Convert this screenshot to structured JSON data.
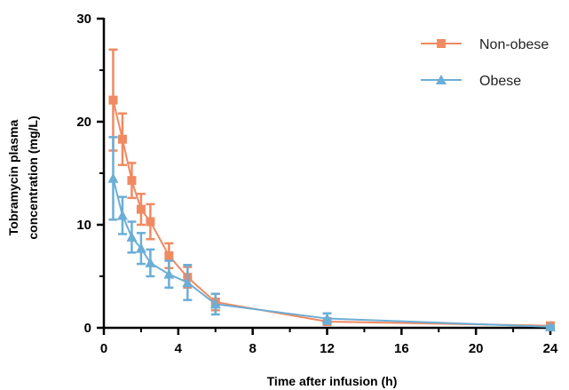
{
  "chart_data": {
    "type": "line",
    "xlabel": "Time after  infusion (h)",
    "ylabel": [
      "Tobramycin plasma",
      "concentration (mg/L)"
    ],
    "xlim": [
      0,
      24
    ],
    "ylim": [
      0,
      30
    ],
    "xticks": [
      "0",
      "4",
      "8",
      "12",
      "16",
      "20",
      "24"
    ],
    "yticks": [
      "0",
      "10",
      "20",
      "30"
    ],
    "grid": false,
    "legend_position": "top-right",
    "series": [
      {
        "name": "Non-obese",
        "color": "#F08A62",
        "marker": "square",
        "x": [
          0.5,
          1,
          1.5,
          2,
          2.5,
          3.5,
          4.5,
          6,
          12,
          24
        ],
        "y": [
          22.1,
          18.3,
          14.3,
          11.5,
          10.3,
          7.0,
          4.9,
          2.5,
          0.6,
          0.2
        ],
        "err": [
          4.9,
          2.5,
          1.7,
          1.5,
          1.7,
          1.2,
          1.0,
          0.8,
          0.3,
          0.1
        ]
      },
      {
        "name": "Obese",
        "color": "#6BAED6",
        "marker": "triangle",
        "x": [
          0.5,
          1,
          1.5,
          2,
          2.5,
          3.5,
          4.5,
          6,
          12,
          24
        ],
        "y": [
          14.5,
          10.9,
          8.8,
          7.7,
          6.3,
          5.2,
          4.4,
          2.3,
          0.9,
          0.1
        ],
        "err": [
          4.0,
          1.8,
          1.5,
          1.5,
          1.3,
          1.3,
          1.7,
          1.0,
          0.5,
          0.1
        ]
      }
    ]
  }
}
